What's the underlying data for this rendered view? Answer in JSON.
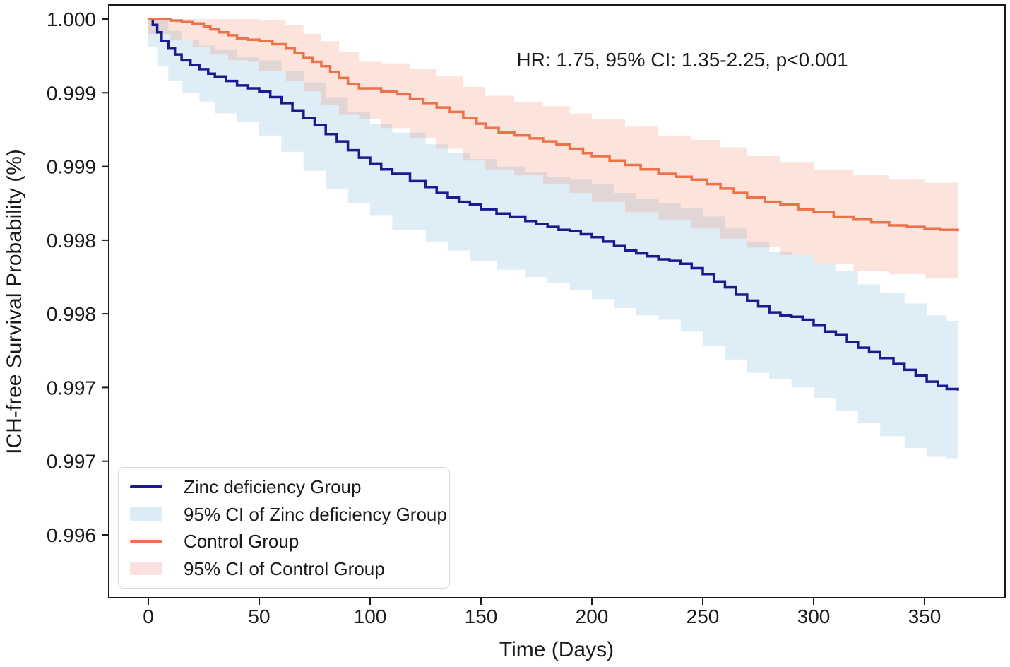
{
  "chart_data": {
    "type": "line",
    "variant": "kaplan_meier_step_with_ci_bands",
    "title": "",
    "annotation": "HR: 1.75, 95% CI: 1.35-2.25, p<0.001",
    "xlabel": "Time (Days)",
    "ylabel": "ICH-free Survival Probability (%)",
    "grid": false,
    "legend_position": "lower left",
    "xlim": [
      -18,
      386
    ],
    "ylim": [
      0.996,
      1.0001
    ],
    "x_ticks": [
      {
        "value": 0,
        "label": "0"
      },
      {
        "value": 50,
        "label": "50"
      },
      {
        "value": 100,
        "label": "100"
      },
      {
        "value": 150,
        "label": "150"
      },
      {
        "value": 200,
        "label": "200"
      },
      {
        "value": 250,
        "label": "250"
      },
      {
        "value": 300,
        "label": "300"
      },
      {
        "value": 350,
        "label": "350"
      }
    ],
    "y_ticks": [
      {
        "value": 1.0,
        "label": "1.000"
      },
      {
        "value": 0.9995,
        "label": "0.999"
      },
      {
        "value": 0.999,
        "label": "0.999"
      },
      {
        "value": 0.9985,
        "label": "0.998"
      },
      {
        "value": 0.998,
        "label": "0.998"
      },
      {
        "value": 0.9975,
        "label": "0.997"
      },
      {
        "value": 0.997,
        "label": "0.997"
      },
      {
        "value": 0.9965,
        "label": "0.996"
      }
    ],
    "series": [
      {
        "id": "zinc-deficiency",
        "name": "Zinc deficiency Group",
        "ci_label": "95% CI of Zinc deficiency Group",
        "line_color": "#181c8f",
        "ci_fill": "rgba(108,172,212,0.22)",
        "legend_patch_color": "#dcecf6",
        "points": [
          [
            0,
            1.0
          ],
          [
            2,
            0.99996
          ],
          [
            4,
            0.99991
          ],
          [
            6,
            0.99985
          ],
          [
            9,
            0.9998
          ],
          [
            12,
            0.99976
          ],
          [
            15,
            0.99972
          ],
          [
            19,
            0.99969
          ],
          [
            23,
            0.99966
          ],
          [
            27,
            0.99963
          ],
          [
            30,
            0.99961
          ],
          [
            35,
            0.99958
          ],
          [
            40,
            0.99955
          ],
          [
            45,
            0.99953
          ],
          [
            50,
            0.99951
          ],
          [
            55,
            0.99947
          ],
          [
            60,
            0.99943
          ],
          [
            65,
            0.99938
          ],
          [
            70,
            0.99933
          ],
          [
            75,
            0.99928
          ],
          [
            80,
            0.99922
          ],
          [
            85,
            0.99917
          ],
          [
            90,
            0.99911
          ],
          [
            95,
            0.99906
          ],
          [
            100,
            0.99902
          ],
          [
            105,
            0.99898
          ],
          [
            110,
            0.99895
          ],
          [
            118,
            0.9989
          ],
          [
            125,
            0.99886
          ],
          [
            130,
            0.99882
          ],
          [
            135,
            0.99879
          ],
          [
            140,
            0.99876
          ],
          [
            145,
            0.99874
          ],
          [
            150,
            0.99871
          ],
          [
            157,
            0.99868
          ],
          [
            163,
            0.99866
          ],
          [
            170,
            0.99863
          ],
          [
            175,
            0.99861
          ],
          [
            180,
            0.99859
          ],
          [
            185,
            0.99857
          ],
          [
            190,
            0.99856
          ],
          [
            195,
            0.99854
          ],
          [
            200,
            0.99852
          ],
          [
            205,
            0.99849
          ],
          [
            210,
            0.99846
          ],
          [
            215,
            0.99843
          ],
          [
            220,
            0.99841
          ],
          [
            225,
            0.99839
          ],
          [
            230,
            0.99837
          ],
          [
            235,
            0.99836
          ],
          [
            240,
            0.99834
          ],
          [
            245,
            0.99831
          ],
          [
            250,
            0.99827
          ],
          [
            255,
            0.99822
          ],
          [
            260,
            0.99818
          ],
          [
            265,
            0.99813
          ],
          [
            270,
            0.99809
          ],
          [
            275,
            0.99805
          ],
          [
            280,
            0.99801
          ],
          [
            285,
            0.99799
          ],
          [
            290,
            0.99798
          ],
          [
            295,
            0.99796
          ],
          [
            300,
            0.99792
          ],
          [
            305,
            0.99788
          ],
          [
            310,
            0.99786
          ],
          [
            315,
            0.99781
          ],
          [
            320,
            0.99777
          ],
          [
            325,
            0.99774
          ],
          [
            330,
            0.9977
          ],
          [
            336,
            0.99766
          ],
          [
            341,
            0.99762
          ],
          [
            346,
            0.99758
          ],
          [
            351,
            0.99754
          ],
          [
            356,
            0.99751
          ],
          [
            360,
            0.99749
          ],
          [
            365,
            0.99748
          ]
        ],
        "ci": [
          [
            0,
            0.99994,
            1.0
          ],
          [
            4,
            0.99981,
            1.0
          ],
          [
            9,
            0.99968,
            0.99992
          ],
          [
            15,
            0.99958,
            0.99986
          ],
          [
            23,
            0.9995,
            0.99982
          ],
          [
            30,
            0.99944,
            0.99979
          ],
          [
            40,
            0.99936,
            0.99974
          ],
          [
            50,
            0.9993,
            0.99972
          ],
          [
            60,
            0.99921,
            0.99965
          ],
          [
            70,
            0.9991,
            0.99957
          ],
          [
            80,
            0.99897,
            0.99947
          ],
          [
            90,
            0.99885,
            0.99937
          ],
          [
            100,
            0.99875,
            0.99929
          ],
          [
            110,
            0.99867,
            0.99923
          ],
          [
            125,
            0.99857,
            0.99915
          ],
          [
            135,
            0.99849,
            0.99909
          ],
          [
            145,
            0.99843,
            0.99905
          ],
          [
            157,
            0.99836,
            0.999
          ],
          [
            170,
            0.9983,
            0.99896
          ],
          [
            180,
            0.99825,
            0.99893
          ],
          [
            190,
            0.99821,
            0.99891
          ],
          [
            200,
            0.99816,
            0.99888
          ],
          [
            210,
            0.9981,
            0.99882
          ],
          [
            220,
            0.99804,
            0.99878
          ],
          [
            230,
            0.99799,
            0.99875
          ],
          [
            240,
            0.99796,
            0.99872
          ],
          [
            250,
            0.99788,
            0.99866
          ],
          [
            260,
            0.99778,
            0.99858
          ],
          [
            270,
            0.99769,
            0.99849
          ],
          [
            280,
            0.9976,
            0.99842
          ],
          [
            290,
            0.99756,
            0.9984
          ],
          [
            300,
            0.9975,
            0.99834
          ],
          [
            310,
            0.99743,
            0.99829
          ],
          [
            320,
            0.99734,
            0.9982
          ],
          [
            330,
            0.99726,
            0.99814
          ],
          [
            341,
            0.99717,
            0.99807
          ],
          [
            351,
            0.99709,
            0.99799
          ],
          [
            360,
            0.99703,
            0.99795
          ],
          [
            365,
            0.99702,
            0.99794
          ]
        ]
      },
      {
        "id": "control",
        "name": "Control Group",
        "ci_label": "95% CI of Control Group",
        "line_color": "#ed7249",
        "ci_fill": "rgba(237,114,73,0.19)",
        "legend_patch_color": "#fbe2df",
        "points": [
          [
            0,
            1.0
          ],
          [
            10,
            0.99999
          ],
          [
            15,
            0.99998
          ],
          [
            20,
            0.99997
          ],
          [
            25,
            0.99995
          ],
          [
            28,
            0.99993
          ],
          [
            32,
            0.99991
          ],
          [
            36,
            0.99989
          ],
          [
            40,
            0.99987
          ],
          [
            45,
            0.99986
          ],
          [
            50,
            0.99985
          ],
          [
            56,
            0.99983
          ],
          [
            62,
            0.9998
          ],
          [
            66,
            0.99977
          ],
          [
            70,
            0.99974
          ],
          [
            74,
            0.99971
          ],
          [
            78,
            0.99968
          ],
          [
            82,
            0.99964
          ],
          [
            86,
            0.9996
          ],
          [
            90,
            0.99956
          ],
          [
            95,
            0.99953
          ],
          [
            105,
            0.99951
          ],
          [
            112,
            0.99949
          ],
          [
            118,
            0.99946
          ],
          [
            124,
            0.99943
          ],
          [
            130,
            0.9994
          ],
          [
            136,
            0.99937
          ],
          [
            142,
            0.99933
          ],
          [
            148,
            0.99929
          ],
          [
            152,
            0.99926
          ],
          [
            158,
            0.99923
          ],
          [
            165,
            0.99921
          ],
          [
            172,
            0.99919
          ],
          [
            178,
            0.99917
          ],
          [
            184,
            0.99915
          ],
          [
            190,
            0.99912
          ],
          [
            196,
            0.99909
          ],
          [
            200,
            0.99907
          ],
          [
            208,
            0.99904
          ],
          [
            215,
            0.99901
          ],
          [
            222,
            0.99898
          ],
          [
            230,
            0.99895
          ],
          [
            238,
            0.99893
          ],
          [
            245,
            0.99891
          ],
          [
            252,
            0.99888
          ],
          [
            258,
            0.99885
          ],
          [
            264,
            0.99882
          ],
          [
            270,
            0.99879
          ],
          [
            278,
            0.99876
          ],
          [
            285,
            0.99874
          ],
          [
            293,
            0.99871
          ],
          [
            300,
            0.99869
          ],
          [
            309,
            0.99866
          ],
          [
            318,
            0.99864
          ],
          [
            326,
            0.99862
          ],
          [
            334,
            0.9986
          ],
          [
            342,
            0.99859
          ],
          [
            350,
            0.99858
          ],
          [
            357,
            0.99857
          ],
          [
            365,
            0.99856
          ]
        ],
        "ci": [
          [
            0,
            0.99996,
            1.0
          ],
          [
            10,
            0.9999,
            1.0
          ],
          [
            20,
            0.99986,
            1.0
          ],
          [
            28,
            0.99981,
            1.0
          ],
          [
            36,
            0.99976,
            1.0
          ],
          [
            45,
            0.99972,
            1.0
          ],
          [
            50,
            0.99971,
            0.99999
          ],
          [
            62,
            0.99965,
            0.99996
          ],
          [
            70,
            0.99958,
            0.9999
          ],
          [
            78,
            0.99951,
            0.99985
          ],
          [
            86,
            0.99942,
            0.99978
          ],
          [
            95,
            0.99935,
            0.99971
          ],
          [
            105,
            0.99932,
            0.9997
          ],
          [
            118,
            0.99926,
            0.99966
          ],
          [
            130,
            0.99919,
            0.99961
          ],
          [
            142,
            0.99912,
            0.99954
          ],
          [
            152,
            0.99904,
            0.99948
          ],
          [
            165,
            0.99898,
            0.99944
          ],
          [
            178,
            0.99894,
            0.99941
          ],
          [
            190,
            0.99888,
            0.99936
          ],
          [
            200,
            0.99882,
            0.99932
          ],
          [
            215,
            0.99876,
            0.99927
          ],
          [
            230,
            0.99869,
            0.99921
          ],
          [
            245,
            0.99864,
            0.99918
          ],
          [
            258,
            0.99858,
            0.99913
          ],
          [
            270,
            0.99851,
            0.99907
          ],
          [
            285,
            0.99845,
            0.99903
          ],
          [
            300,
            0.9984,
            0.99898
          ],
          [
            318,
            0.99834,
            0.99894
          ],
          [
            334,
            0.99829,
            0.99891
          ],
          [
            350,
            0.99827,
            0.99889
          ],
          [
            365,
            0.99824,
            0.99888
          ]
        ]
      }
    ],
    "legend_entries": [
      {
        "swatch": "line",
        "series": 0,
        "label": "Zinc deficiency Group"
      },
      {
        "swatch": "patch",
        "series": 0,
        "label": "95% CI of Zinc deficiency Group"
      },
      {
        "swatch": "line",
        "series": 1,
        "label": "Control Group"
      },
      {
        "swatch": "patch",
        "series": 1,
        "label": "95% CI of Control Group"
      }
    ]
  }
}
